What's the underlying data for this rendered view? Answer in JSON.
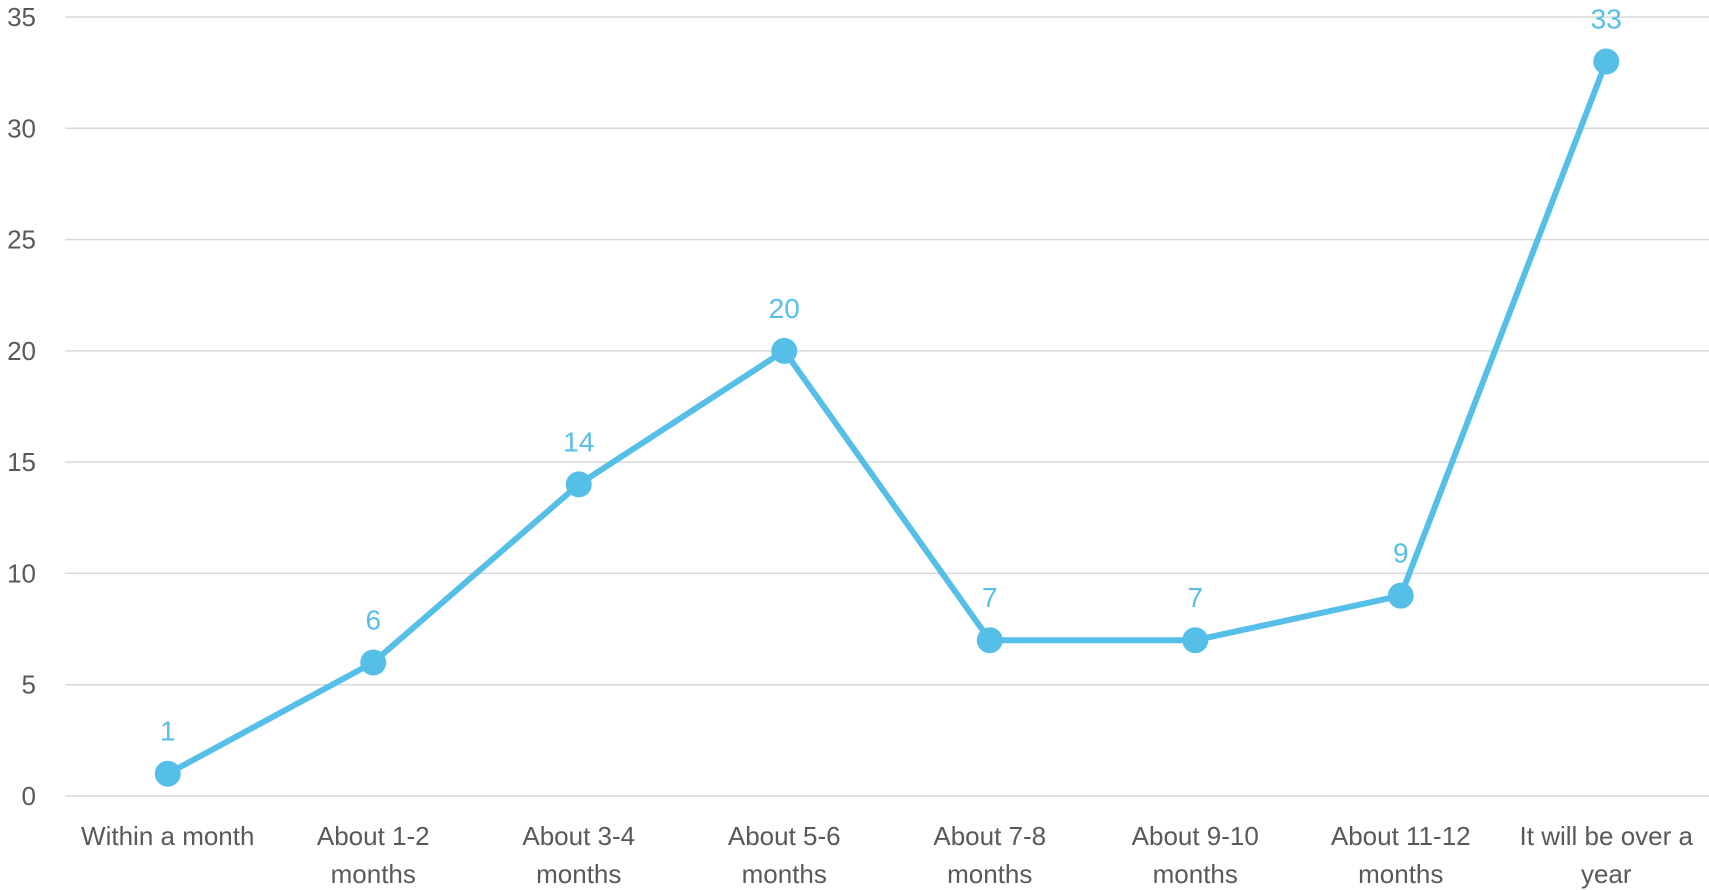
{
  "chart_data": {
    "type": "line",
    "categories": [
      [
        "Within a month"
      ],
      [
        "About 1-2",
        "months"
      ],
      [
        "About 3-4",
        "months"
      ],
      [
        "About 5-6",
        "months"
      ],
      [
        "About 7-8",
        "months"
      ],
      [
        "About 9-10",
        "months"
      ],
      [
        "About 11-12",
        "months"
      ],
      [
        "It will be over a",
        "year"
      ]
    ],
    "series": [
      {
        "values": [
          1,
          6,
          14,
          20,
          7,
          7,
          9,
          33
        ],
        "color": "#56bfe8"
      }
    ],
    "ylim": [
      0,
      35
    ],
    "yticks": [
      0,
      5,
      10,
      15,
      20,
      25,
      30,
      35
    ],
    "grid": true,
    "data_labels": true,
    "title": "",
    "xlabel": "",
    "ylabel": ""
  }
}
